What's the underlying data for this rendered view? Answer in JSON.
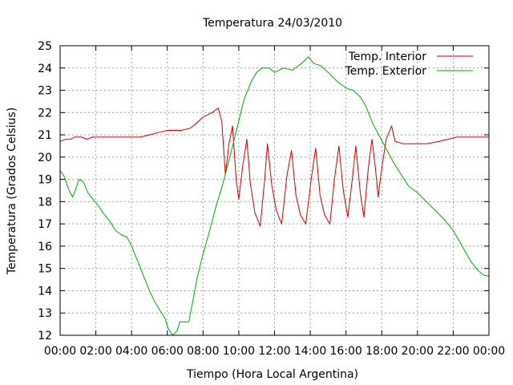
{
  "chart_data": {
    "type": "line",
    "title": "Temperatura 24/03/2010",
    "xlabel": "Tiempo (Hora Local Argentina)",
    "ylabel": "Temperatura (Grados Celsius)",
    "xlim": [
      0,
      24
    ],
    "ylim": [
      12,
      25
    ],
    "x_tick_labels": [
      "00:00",
      "02:00",
      "04:00",
      "06:00",
      "08:00",
      "10:00",
      "12:00",
      "14:00",
      "16:00",
      "18:00",
      "20:00",
      "22:00",
      "00:00"
    ],
    "y_tick_labels": [
      "12",
      "13",
      "14",
      "15",
      "16",
      "17",
      "18",
      "19",
      "20",
      "21",
      "22",
      "23",
      "24",
      "25"
    ],
    "grid": true,
    "legend_position": "top-right",
    "colors": {
      "interior": "#cc0000",
      "exterior": "#00aa00"
    },
    "series": [
      {
        "name": "Temp. Interior",
        "color": "#cc0000",
        "points": [
          [
            0.0,
            20.7
          ],
          [
            0.3,
            20.8
          ],
          [
            0.6,
            20.8
          ],
          [
            0.8,
            20.9
          ],
          [
            1.2,
            20.9
          ],
          [
            1.5,
            20.8
          ],
          [
            1.8,
            20.9
          ],
          [
            2.5,
            20.9
          ],
          [
            3.5,
            20.9
          ],
          [
            4.5,
            20.9
          ],
          [
            5.0,
            21.0
          ],
          [
            5.5,
            21.1
          ],
          [
            6.0,
            21.2
          ],
          [
            6.8,
            21.2
          ],
          [
            7.3,
            21.3
          ],
          [
            7.6,
            21.5
          ],
          [
            8.0,
            21.8
          ],
          [
            8.5,
            22.0
          ],
          [
            8.85,
            22.2
          ],
          [
            9.05,
            21.6
          ],
          [
            9.25,
            19.2
          ],
          [
            9.45,
            20.6
          ],
          [
            9.65,
            21.4
          ],
          [
            9.85,
            19.0
          ],
          [
            10.0,
            18.1
          ],
          [
            10.2,
            19.5
          ],
          [
            10.45,
            20.8
          ],
          [
            10.65,
            18.8
          ],
          [
            10.9,
            17.5
          ],
          [
            11.2,
            16.9
          ],
          [
            11.45,
            19.0
          ],
          [
            11.6,
            20.6
          ],
          [
            11.85,
            18.7
          ],
          [
            12.1,
            17.6
          ],
          [
            12.4,
            17.0
          ],
          [
            12.7,
            19.2
          ],
          [
            12.95,
            20.3
          ],
          [
            13.2,
            18.3
          ],
          [
            13.45,
            17.4
          ],
          [
            13.75,
            17.0
          ],
          [
            14.05,
            19.0
          ],
          [
            14.3,
            20.4
          ],
          [
            14.55,
            18.3
          ],
          [
            14.8,
            17.4
          ],
          [
            15.1,
            17.0
          ],
          [
            15.35,
            19.0
          ],
          [
            15.6,
            20.5
          ],
          [
            15.85,
            18.5
          ],
          [
            16.1,
            17.3
          ],
          [
            16.35,
            19.0
          ],
          [
            16.55,
            20.5
          ],
          [
            16.8,
            18.4
          ],
          [
            17.0,
            17.3
          ],
          [
            17.25,
            19.5
          ],
          [
            17.45,
            20.8
          ],
          [
            17.65,
            19.5
          ],
          [
            17.8,
            18.2
          ],
          [
            17.95,
            19.2
          ],
          [
            18.25,
            20.8
          ],
          [
            18.55,
            21.4
          ],
          [
            18.75,
            20.7
          ],
          [
            19.2,
            20.6
          ],
          [
            20.5,
            20.6
          ],
          [
            21.2,
            20.7
          ],
          [
            21.7,
            20.8
          ],
          [
            22.2,
            20.9
          ],
          [
            24.0,
            20.9
          ]
        ]
      },
      {
        "name": "Temp. Exterior",
        "color": "#00aa00",
        "points": [
          [
            0.0,
            19.4
          ],
          [
            0.25,
            19.1
          ],
          [
            0.5,
            18.5
          ],
          [
            0.7,
            18.2
          ],
          [
            0.85,
            18.5
          ],
          [
            1.05,
            19.0
          ],
          [
            1.3,
            18.9
          ],
          [
            1.55,
            18.4
          ],
          [
            1.85,
            18.1
          ],
          [
            2.15,
            17.8
          ],
          [
            2.4,
            17.5
          ],
          [
            2.8,
            17.1
          ],
          [
            3.1,
            16.7
          ],
          [
            3.45,
            16.5
          ],
          [
            3.75,
            16.4
          ],
          [
            4.0,
            16.0
          ],
          [
            4.3,
            15.4
          ],
          [
            4.7,
            14.6
          ],
          [
            5.0,
            14.0
          ],
          [
            5.3,
            13.5
          ],
          [
            5.6,
            13.1
          ],
          [
            5.85,
            12.8
          ],
          [
            6.05,
            12.3
          ],
          [
            6.3,
            12.0
          ],
          [
            6.55,
            12.2
          ],
          [
            6.7,
            12.6
          ],
          [
            6.9,
            12.6
          ],
          [
            7.2,
            12.6
          ],
          [
            7.35,
            13.2
          ],
          [
            7.65,
            14.5
          ],
          [
            7.95,
            15.5
          ],
          [
            8.3,
            16.5
          ],
          [
            8.7,
            17.7
          ],
          [
            9.1,
            18.8
          ],
          [
            9.5,
            20.0
          ],
          [
            9.9,
            21.3
          ],
          [
            10.3,
            22.6
          ],
          [
            10.7,
            23.4
          ],
          [
            11.0,
            23.8
          ],
          [
            11.3,
            24.0
          ],
          [
            11.7,
            24.0
          ],
          [
            12.0,
            23.8
          ],
          [
            12.5,
            24.0
          ],
          [
            13.0,
            23.9
          ],
          [
            13.5,
            24.2
          ],
          [
            13.9,
            24.5
          ],
          [
            14.2,
            24.2
          ],
          [
            14.6,
            24.1
          ],
          [
            15.0,
            23.8
          ],
          [
            15.5,
            23.4
          ],
          [
            16.0,
            23.1
          ],
          [
            16.4,
            23.0
          ],
          [
            16.8,
            22.7
          ],
          [
            17.1,
            22.3
          ],
          [
            17.5,
            21.5
          ],
          [
            17.9,
            20.9
          ],
          [
            18.3,
            20.3
          ],
          [
            18.7,
            19.7
          ],
          [
            19.1,
            19.2
          ],
          [
            19.5,
            18.7
          ],
          [
            20.0,
            18.4
          ],
          [
            20.5,
            18.0
          ],
          [
            21.0,
            17.6
          ],
          [
            21.5,
            17.2
          ],
          [
            22.0,
            16.7
          ],
          [
            22.5,
            16.0
          ],
          [
            23.0,
            15.3
          ],
          [
            23.4,
            14.9
          ],
          [
            23.7,
            14.7
          ],
          [
            24.0,
            14.65
          ]
        ]
      }
    ]
  }
}
